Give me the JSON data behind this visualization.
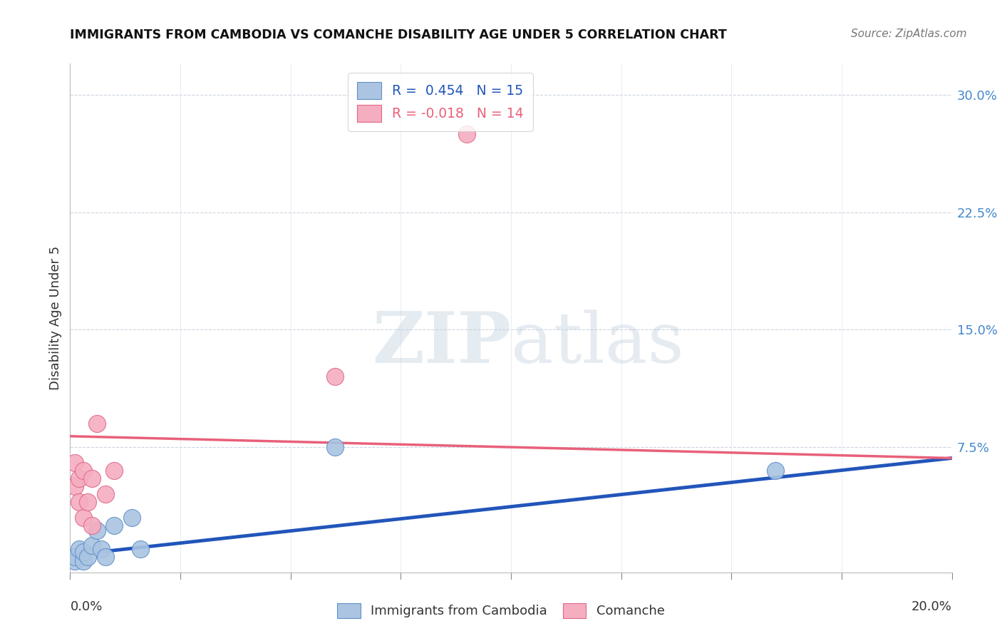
{
  "title": "IMMIGRANTS FROM CAMBODIA VS COMANCHE DISABILITY AGE UNDER 5 CORRELATION CHART",
  "source": "Source: ZipAtlas.com",
  "ylabel": "Disability Age Under 5",
  "ytick_labels": [
    "7.5%",
    "15.0%",
    "22.5%",
    "30.0%"
  ],
  "ytick_values": [
    0.075,
    0.15,
    0.225,
    0.3
  ],
  "xlim": [
    0.0,
    0.2
  ],
  "ylim": [
    -0.005,
    0.32
  ],
  "legend_r1": "R =  0.454   N = 15",
  "legend_r2": "R = -0.018   N = 14",
  "blue_color": "#aac4e2",
  "pink_color": "#f5adc0",
  "blue_edge_color": "#6090c8",
  "pink_edge_color": "#e06888",
  "blue_line_color": "#2255bb",
  "pink_line_color": "#e8607a",
  "watermark_color": "#ccd8ea",
  "blue_points_x": [
    0.001,
    0.001,
    0.002,
    0.003,
    0.003,
    0.004,
    0.005,
    0.006,
    0.007,
    0.008,
    0.01,
    0.014,
    0.016,
    0.06,
    0.16
  ],
  "blue_points_y": [
    0.002,
    0.005,
    0.01,
    0.002,
    0.008,
    0.005,
    0.012,
    0.022,
    0.01,
    0.005,
    0.025,
    0.03,
    0.01,
    0.075,
    0.06
  ],
  "pink_points_x": [
    0.001,
    0.001,
    0.002,
    0.002,
    0.003,
    0.003,
    0.004,
    0.005,
    0.005,
    0.006,
    0.008,
    0.01,
    0.06,
    0.09
  ],
  "pink_points_y": [
    0.05,
    0.065,
    0.04,
    0.055,
    0.03,
    0.06,
    0.04,
    0.025,
    0.055,
    0.09,
    0.045,
    0.06,
    0.12,
    0.275
  ],
  "blue_line_x": [
    0.0,
    0.2
  ],
  "blue_line_y": [
    0.006,
    0.068
  ],
  "pink_line_x": [
    0.0,
    0.2
  ],
  "pink_line_y": [
    0.082,
    0.068
  ],
  "x_tick_positions": [
    0.0,
    0.025,
    0.05,
    0.075,
    0.1,
    0.125,
    0.15,
    0.175,
    0.2
  ]
}
